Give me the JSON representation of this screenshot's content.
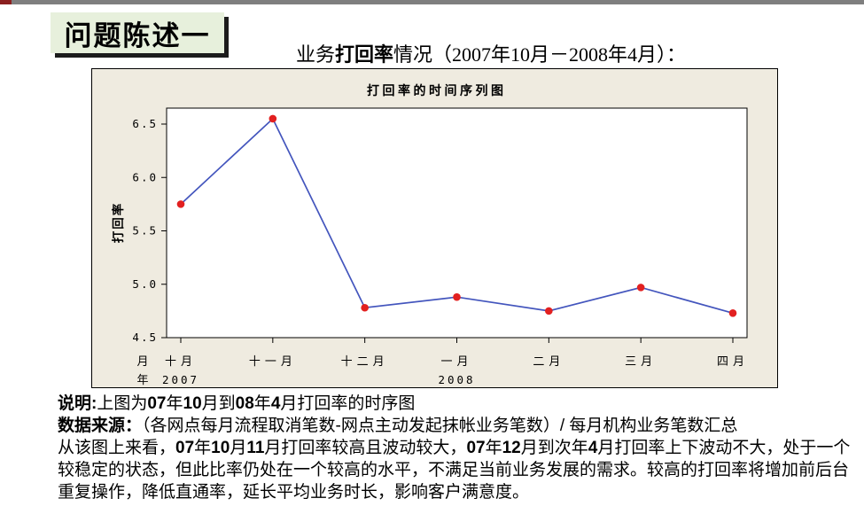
{
  "top_bar": {
    "color": "#7f7f7f",
    "accent_color": "#8b1f1f"
  },
  "title_box": {
    "label": "问题陈述一",
    "bg": "#e7f0dc",
    "shadow_color": "#1c1c1c"
  },
  "heading": {
    "segments": [
      {
        "t": "业务",
        "b": false
      },
      {
        "t": "打回率",
        "b": true
      },
      {
        "t": "情况（2007年10月－2008年4月）：",
        "b": false
      }
    ]
  },
  "chart_data": {
    "type": "line",
    "title": "打 回 率   的 时 间 序 列 图",
    "ylabel": "打回率",
    "categories": [
      "十月",
      "十一月",
      "十二月",
      "一月",
      "二月",
      "三月",
      "四月"
    ],
    "values": [
      5.75,
      6.55,
      4.78,
      4.88,
      4.75,
      4.97,
      4.73
    ],
    "y_ticks": [
      4.5,
      5.0,
      5.5,
      6.0,
      6.5
    ],
    "ylim": [
      4.5,
      6.5
    ],
    "x_row_month_header": "月",
    "x_row_year_header": "年",
    "year_labels": [
      {
        "text": "2007",
        "tick": 0
      },
      {
        "text": "2008",
        "tick": 3
      }
    ],
    "line_color": "#4355bd",
    "point_color": "#e22020",
    "frame_bg": "#efebe0",
    "plot_bg": "#ffffff",
    "grid": false,
    "legend": "none"
  },
  "notes": {
    "lines": [
      {
        "segments": [
          {
            "t": "说明:",
            "b": true
          },
          {
            "t": "上图为",
            "b": false
          },
          {
            "t": "07",
            "b": true
          },
          {
            "t": "年",
            "b": false
          },
          {
            "t": "10",
            "b": true
          },
          {
            "t": "月到",
            "b": false
          },
          {
            "t": "08",
            "b": true
          },
          {
            "t": "年",
            "b": false
          },
          {
            "t": "4",
            "b": true
          },
          {
            "t": "月打回率的时序图",
            "b": false
          }
        ]
      },
      {
        "segments": [
          {
            "t": "数据来源：",
            "b": true
          },
          {
            "t": "（各网点每月流程取消笔数-网点主动发起抹帐业务笔数）/ 每月机构业务笔数汇总",
            "b": false
          }
        ]
      },
      {
        "segments": [
          {
            "t": "从该图上来看，",
            "b": false
          },
          {
            "t": "07",
            "b": true
          },
          {
            "t": "年",
            "b": false
          },
          {
            "t": "10",
            "b": true
          },
          {
            "t": "月",
            "b": false
          },
          {
            "t": "11",
            "b": true
          },
          {
            "t": "月打回率较高且波动较大，",
            "b": false
          },
          {
            "t": "07",
            "b": true
          },
          {
            "t": "年",
            "b": false
          },
          {
            "t": "12",
            "b": true
          },
          {
            "t": "月到次年",
            "b": false
          },
          {
            "t": "4",
            "b": true
          },
          {
            "t": "月打回率上下波动不大，处于一个",
            "b": false
          }
        ]
      },
      {
        "segments": [
          {
            "t": "较稳定的状态，但此比率仍处在一个较高的水平，不满足当前业务发展的需求。较高的打回率将增加前后台",
            "b": false
          }
        ]
      },
      {
        "segments": [
          {
            "t": "重复操作，降低直通率，延长平均业务时长，影响客户满意度。",
            "b": false
          }
        ]
      }
    ]
  }
}
